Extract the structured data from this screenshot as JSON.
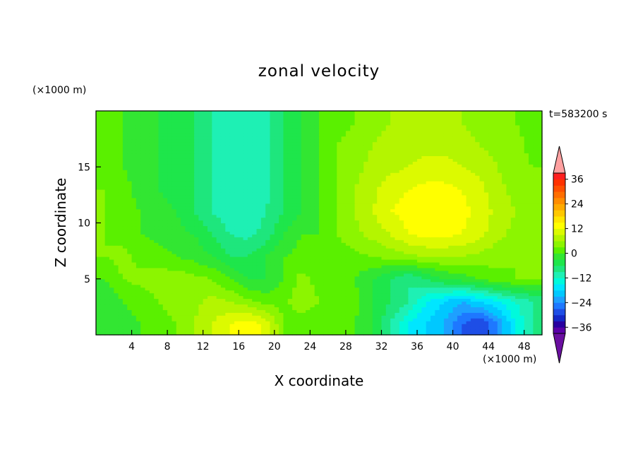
{
  "chart_data": {
    "type": "heatmap",
    "title": "zonal velocity",
    "xlabel": "X coordinate",
    "ylabel": "Z coordinate",
    "x_unit": "(×1000 m)",
    "y_unit": "(×1000 m)",
    "time_label": "t=583200 s",
    "xlim": [
      0,
      50
    ],
    "ylim": [
      0,
      20
    ],
    "x_ticks": [
      "4",
      "8",
      "12",
      "16",
      "20",
      "24",
      "28",
      "32",
      "36",
      "40",
      "44",
      "48"
    ],
    "y_ticks": [
      "5",
      "10",
      "15"
    ],
    "colorbar": {
      "levels": [
        -42,
        -39,
        -36,
        -33,
        -30,
        -27,
        -24,
        -21,
        -18,
        -15,
        -12,
        -9,
        -6,
        -3,
        0,
        3,
        6,
        9,
        12,
        15,
        18,
        21,
        24,
        27,
        30,
        33,
        36,
        39,
        42
      ],
      "labels": [
        "36",
        "24",
        "12",
        "0",
        "−12",
        "−24",
        "−36"
      ],
      "colors": [
        "#6a0fa0",
        "#5a00a8",
        "#2800a0",
        "#1428c8",
        "#1e4ee6",
        "#1e78ff",
        "#1ea0ff",
        "#00c8ff",
        "#00e6ff",
        "#00fadc",
        "#1ef0b4",
        "#1ee67d",
        "#1ee64b",
        "#32e632",
        "#5af000",
        "#8cf500",
        "#b4f500",
        "#dcfa00",
        "#ffff00",
        "#ffe600",
        "#ffc800",
        "#ffaa00",
        "#ff8c00",
        "#ff6e00",
        "#ff5000",
        "#ff3200",
        "#ff1e1e",
        "#ffa0a0"
      ]
    },
    "grid_cols": [
      "x",
      1,
      3,
      5,
      7,
      9,
      11,
      13,
      15,
      17,
      19,
      21,
      23,
      25,
      27,
      29,
      31,
      33,
      35,
      37,
      39,
      41,
      43,
      45,
      47,
      49
    ],
    "rows": [
      {
        "z": 1,
        "u": [
          -3,
          -1,
          0,
          2,
          3,
          6,
          9,
          12,
          14,
          11,
          3,
          1,
          0,
          1,
          0,
          -3,
          -9,
          -15,
          -18,
          -21,
          -27,
          -30,
          -24,
          -15,
          -9
        ]
      },
      {
        "z": 3,
        "u": [
          -3,
          0,
          1,
          3,
          4,
          5,
          7,
          6,
          4,
          2,
          2,
          5,
          3,
          0,
          1,
          -3,
          -6,
          -9,
          -15,
          -18,
          -21,
          -18,
          -15,
          -12,
          -9
        ]
      },
      {
        "z": 5,
        "u": [
          0,
          3,
          4,
          5,
          5,
          4,
          3,
          0,
          -3,
          -3,
          0,
          4,
          2,
          0,
          0,
          -3,
          -6,
          -9,
          -6,
          -3,
          -2,
          0,
          2,
          3,
          3
        ]
      },
      {
        "z": 7,
        "u": [
          3,
          4,
          2,
          1,
          0,
          -1,
          -3,
          -6,
          -6,
          -3,
          0,
          1,
          0,
          1,
          2,
          3,
          4,
          5,
          6,
          6,
          6,
          5,
          4,
          3,
          3
        ]
      },
      {
        "z": 9,
        "u": [
          3,
          2,
          0,
          -1,
          -2,
          -3,
          -6,
          -9,
          -10,
          -8,
          -3,
          0,
          0,
          3,
          5,
          7,
          9,
          12,
          13,
          13,
          12,
          10,
          7,
          5,
          4
        ]
      },
      {
        "z": 11,
        "u": [
          3,
          1,
          0,
          -2,
          -3,
          -6,
          -9,
          -11,
          -11,
          -9,
          -6,
          -3,
          0,
          3,
          6,
          9,
          12,
          13,
          14,
          15,
          13,
          11,
          8,
          6,
          4
        ]
      },
      {
        "z": 13,
        "u": [
          3,
          1,
          -1,
          -3,
          -4,
          -6,
          -9,
          -11,
          -11,
          -10,
          -6,
          -3,
          0,
          3,
          6,
          8,
          11,
          12,
          13,
          13,
          12,
          10,
          7,
          5,
          3
        ]
      },
      {
        "z": 15,
        "u": [
          2,
          0,
          -1,
          -3,
          -4,
          -6,
          -9,
          -12,
          -12,
          -10,
          -6,
          -3,
          0,
          3,
          5,
          7,
          8,
          9,
          10,
          10,
          9,
          8,
          6,
          4,
          3
        ]
      },
      {
        "z": 17,
        "u": [
          2,
          0,
          -1,
          -3,
          -4,
          -6,
          -9,
          -12,
          -12,
          -10,
          -6,
          -3,
          0,
          3,
          4,
          6,
          7,
          8,
          8,
          8,
          7,
          6,
          5,
          4,
          2
        ]
      },
      {
        "z": 19,
        "u": [
          1,
          0,
          -2,
          -3,
          -4,
          -6,
          -9,
          -12,
          -12,
          -10,
          -6,
          -3,
          0,
          2,
          3,
          5,
          6,
          6,
          6,
          6,
          6,
          5,
          4,
          3,
          2
        ]
      }
    ]
  }
}
